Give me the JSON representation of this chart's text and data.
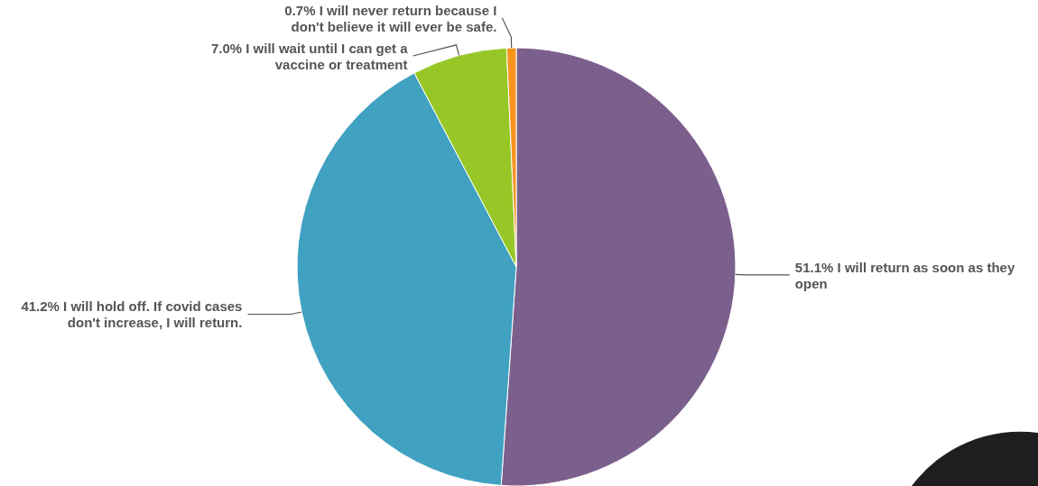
{
  "chart_data": {
    "type": "pie",
    "categories": [
      "I will return as soon as they open",
      "I will hold off. If covid cases don't increase, I will return.",
      "I will wait until I can get a vaccine or treatment",
      "I will never return because I don't believe it will ever be safe."
    ],
    "values": [
      51.1,
      41.2,
      7.0,
      0.7
    ],
    "colors": [
      "#7b5f8d",
      "#40a1c1",
      "#97c727",
      "#f7941d"
    ],
    "value_labels": [
      "51.1%",
      "41.2%",
      "7.0%",
      "0.7%"
    ]
  }
}
